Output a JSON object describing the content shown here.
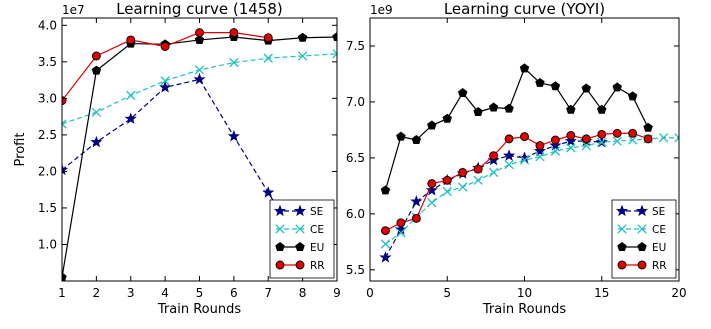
{
  "chart_data": [
    {
      "type": "line",
      "title": "Learning curve (1458)",
      "xlabel": "Train Rounds",
      "ylabel": "Profit",
      "y_exponent": "1e7",
      "xlim": [
        1,
        9
      ],
      "ylim": [
        0.5,
        4.1
      ],
      "xticks": [
        "1",
        "2",
        "3",
        "4",
        "5",
        "6",
        "7",
        "8",
        "9"
      ],
      "yticks": [
        "1.0",
        "1.5",
        "2.0",
        "2.5",
        "3.0",
        "3.5",
        "4.0"
      ],
      "ytick_values": [
        1.0,
        1.5,
        2.0,
        2.5,
        3.0,
        3.5,
        4.0
      ],
      "grid": false,
      "legend_position": "lower-right",
      "series": [
        {
          "name": "SE",
          "color": "#000080",
          "marker": "star",
          "line": "dashed",
          "x": [
            1,
            2,
            3,
            4,
            5,
            6,
            7,
            8
          ],
          "values": [
            2.02,
            2.4,
            2.72,
            3.15,
            3.26,
            2.48,
            1.71,
            0.95
          ]
        },
        {
          "name": "CE",
          "color": "#20c0c0",
          "marker": "x",
          "line": "dashed",
          "x": [
            1,
            2,
            3,
            4,
            5,
            6,
            7,
            8,
            9
          ],
          "values": [
            2.65,
            2.81,
            3.04,
            3.24,
            3.39,
            3.49,
            3.55,
            3.58,
            3.61
          ]
        },
        {
          "name": "EU",
          "color": "#000000",
          "marker": "pentagon",
          "line": "solid",
          "x": [
            1,
            2,
            3,
            4,
            5,
            6,
            7,
            8,
            9
          ],
          "values": [
            0.55,
            3.38,
            3.75,
            3.74,
            3.8,
            3.84,
            3.79,
            3.83,
            3.84
          ]
        },
        {
          "name": "RR",
          "color": "#e00000",
          "marker": "circle",
          "line": "solid",
          "x": [
            1,
            2,
            3,
            4,
            5,
            6,
            7
          ],
          "values": [
            2.97,
            3.58,
            3.8,
            3.71,
            3.9,
            3.9,
            3.83
          ]
        }
      ]
    },
    {
      "type": "line",
      "title": "Learning curve (YOYI)",
      "xlabel": "Train Rounds",
      "ylabel": "",
      "y_exponent": "1e9",
      "xlim": [
        0,
        20
      ],
      "ylim": [
        5.4,
        7.75
      ],
      "xticks": [
        "0",
        "5",
        "10",
        "15",
        "20"
      ],
      "xtick_values": [
        0,
        5,
        10,
        15,
        20
      ],
      "yticks": [
        "5.5",
        "6.0",
        "6.5",
        "7.0",
        "7.5"
      ],
      "ytick_values": [
        5.5,
        6.0,
        6.5,
        7.0,
        7.5
      ],
      "grid": false,
      "legend_position": "lower-right",
      "series": [
        {
          "name": "SE",
          "color": "#000080",
          "marker": "star",
          "line": "dashed",
          "x": [
            1,
            2,
            3,
            4,
            5,
            6,
            7,
            8,
            9,
            10,
            11,
            12,
            13,
            14,
            15
          ],
          "values": [
            5.61,
            5.86,
            6.11,
            6.21,
            6.3,
            6.36,
            6.41,
            6.48,
            6.52,
            6.5,
            6.56,
            6.61,
            6.65,
            6.65,
            6.64
          ]
        },
        {
          "name": "CE",
          "color": "#20c0c0",
          "marker": "x",
          "line": "dashed",
          "x": [
            1,
            2,
            3,
            4,
            5,
            6,
            7,
            8,
            9,
            10,
            11,
            12,
            13,
            14,
            15,
            16,
            17,
            18,
            19,
            20
          ],
          "values": [
            5.73,
            5.83,
            5.97,
            6.1,
            6.2,
            6.24,
            6.3,
            6.37,
            6.44,
            6.48,
            6.51,
            6.56,
            6.59,
            6.61,
            6.64,
            6.65,
            6.66,
            6.67,
            6.68,
            6.68
          ]
        },
        {
          "name": "EU",
          "color": "#000000",
          "marker": "pentagon",
          "line": "solid",
          "x": [
            1,
            2,
            3,
            4,
            5,
            6,
            7,
            8,
            9,
            10,
            11,
            12,
            13,
            14,
            15,
            16,
            17,
            18
          ],
          "values": [
            6.21,
            6.69,
            6.66,
            6.79,
            6.85,
            7.08,
            6.91,
            6.95,
            6.94,
            7.3,
            7.17,
            7.14,
            6.93,
            7.12,
            6.93,
            7.13,
            7.05,
            6.77
          ]
        },
        {
          "name": "RR",
          "color": "#e00000",
          "marker": "circle",
          "line": "solid",
          "x": [
            1,
            2,
            3,
            4,
            5,
            6,
            7,
            8,
            9,
            10,
            11,
            12,
            13,
            14,
            15,
            16,
            17,
            18
          ],
          "values": [
            5.85,
            5.92,
            5.96,
            6.27,
            6.3,
            6.37,
            6.4,
            6.52,
            6.67,
            6.69,
            6.61,
            6.66,
            6.7,
            6.67,
            6.71,
            6.72,
            6.72,
            6.67
          ]
        }
      ]
    }
  ]
}
